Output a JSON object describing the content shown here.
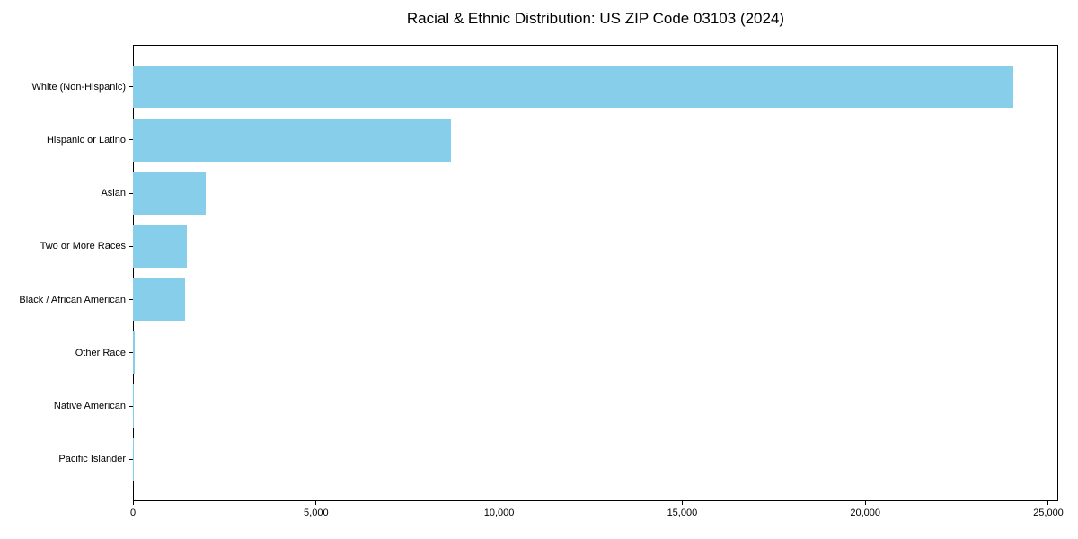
{
  "title": "Racial & Ethnic Distribution: US ZIP Code 03103 (2024)",
  "chart_data": {
    "type": "bar",
    "orientation": "horizontal",
    "title": "Racial & Ethnic Distribution: US ZIP Code 03103 (2024)",
    "categories": [
      "White (Non-Hispanic)",
      "Hispanic or Latino",
      "Asian",
      "Two or More Races",
      "Black / African American",
      "Other Race",
      "Native American",
      "Pacific Islander"
    ],
    "values": [
      24050,
      8680,
      1990,
      1470,
      1430,
      40,
      30,
      10
    ],
    "xlabel": "",
    "ylabel": "",
    "xticks": [
      0,
      5000,
      10000,
      15000,
      20000,
      25000
    ],
    "xtick_labels": [
      "0",
      "5,000",
      "10,000",
      "15,000",
      "20,000",
      "25,000"
    ],
    "xlim": [
      0,
      25270
    ],
    "grid": false,
    "legend": null,
    "bar_color": "#87CEEB",
    "background_color": "#ffffff",
    "spine_color": "#000000"
  }
}
